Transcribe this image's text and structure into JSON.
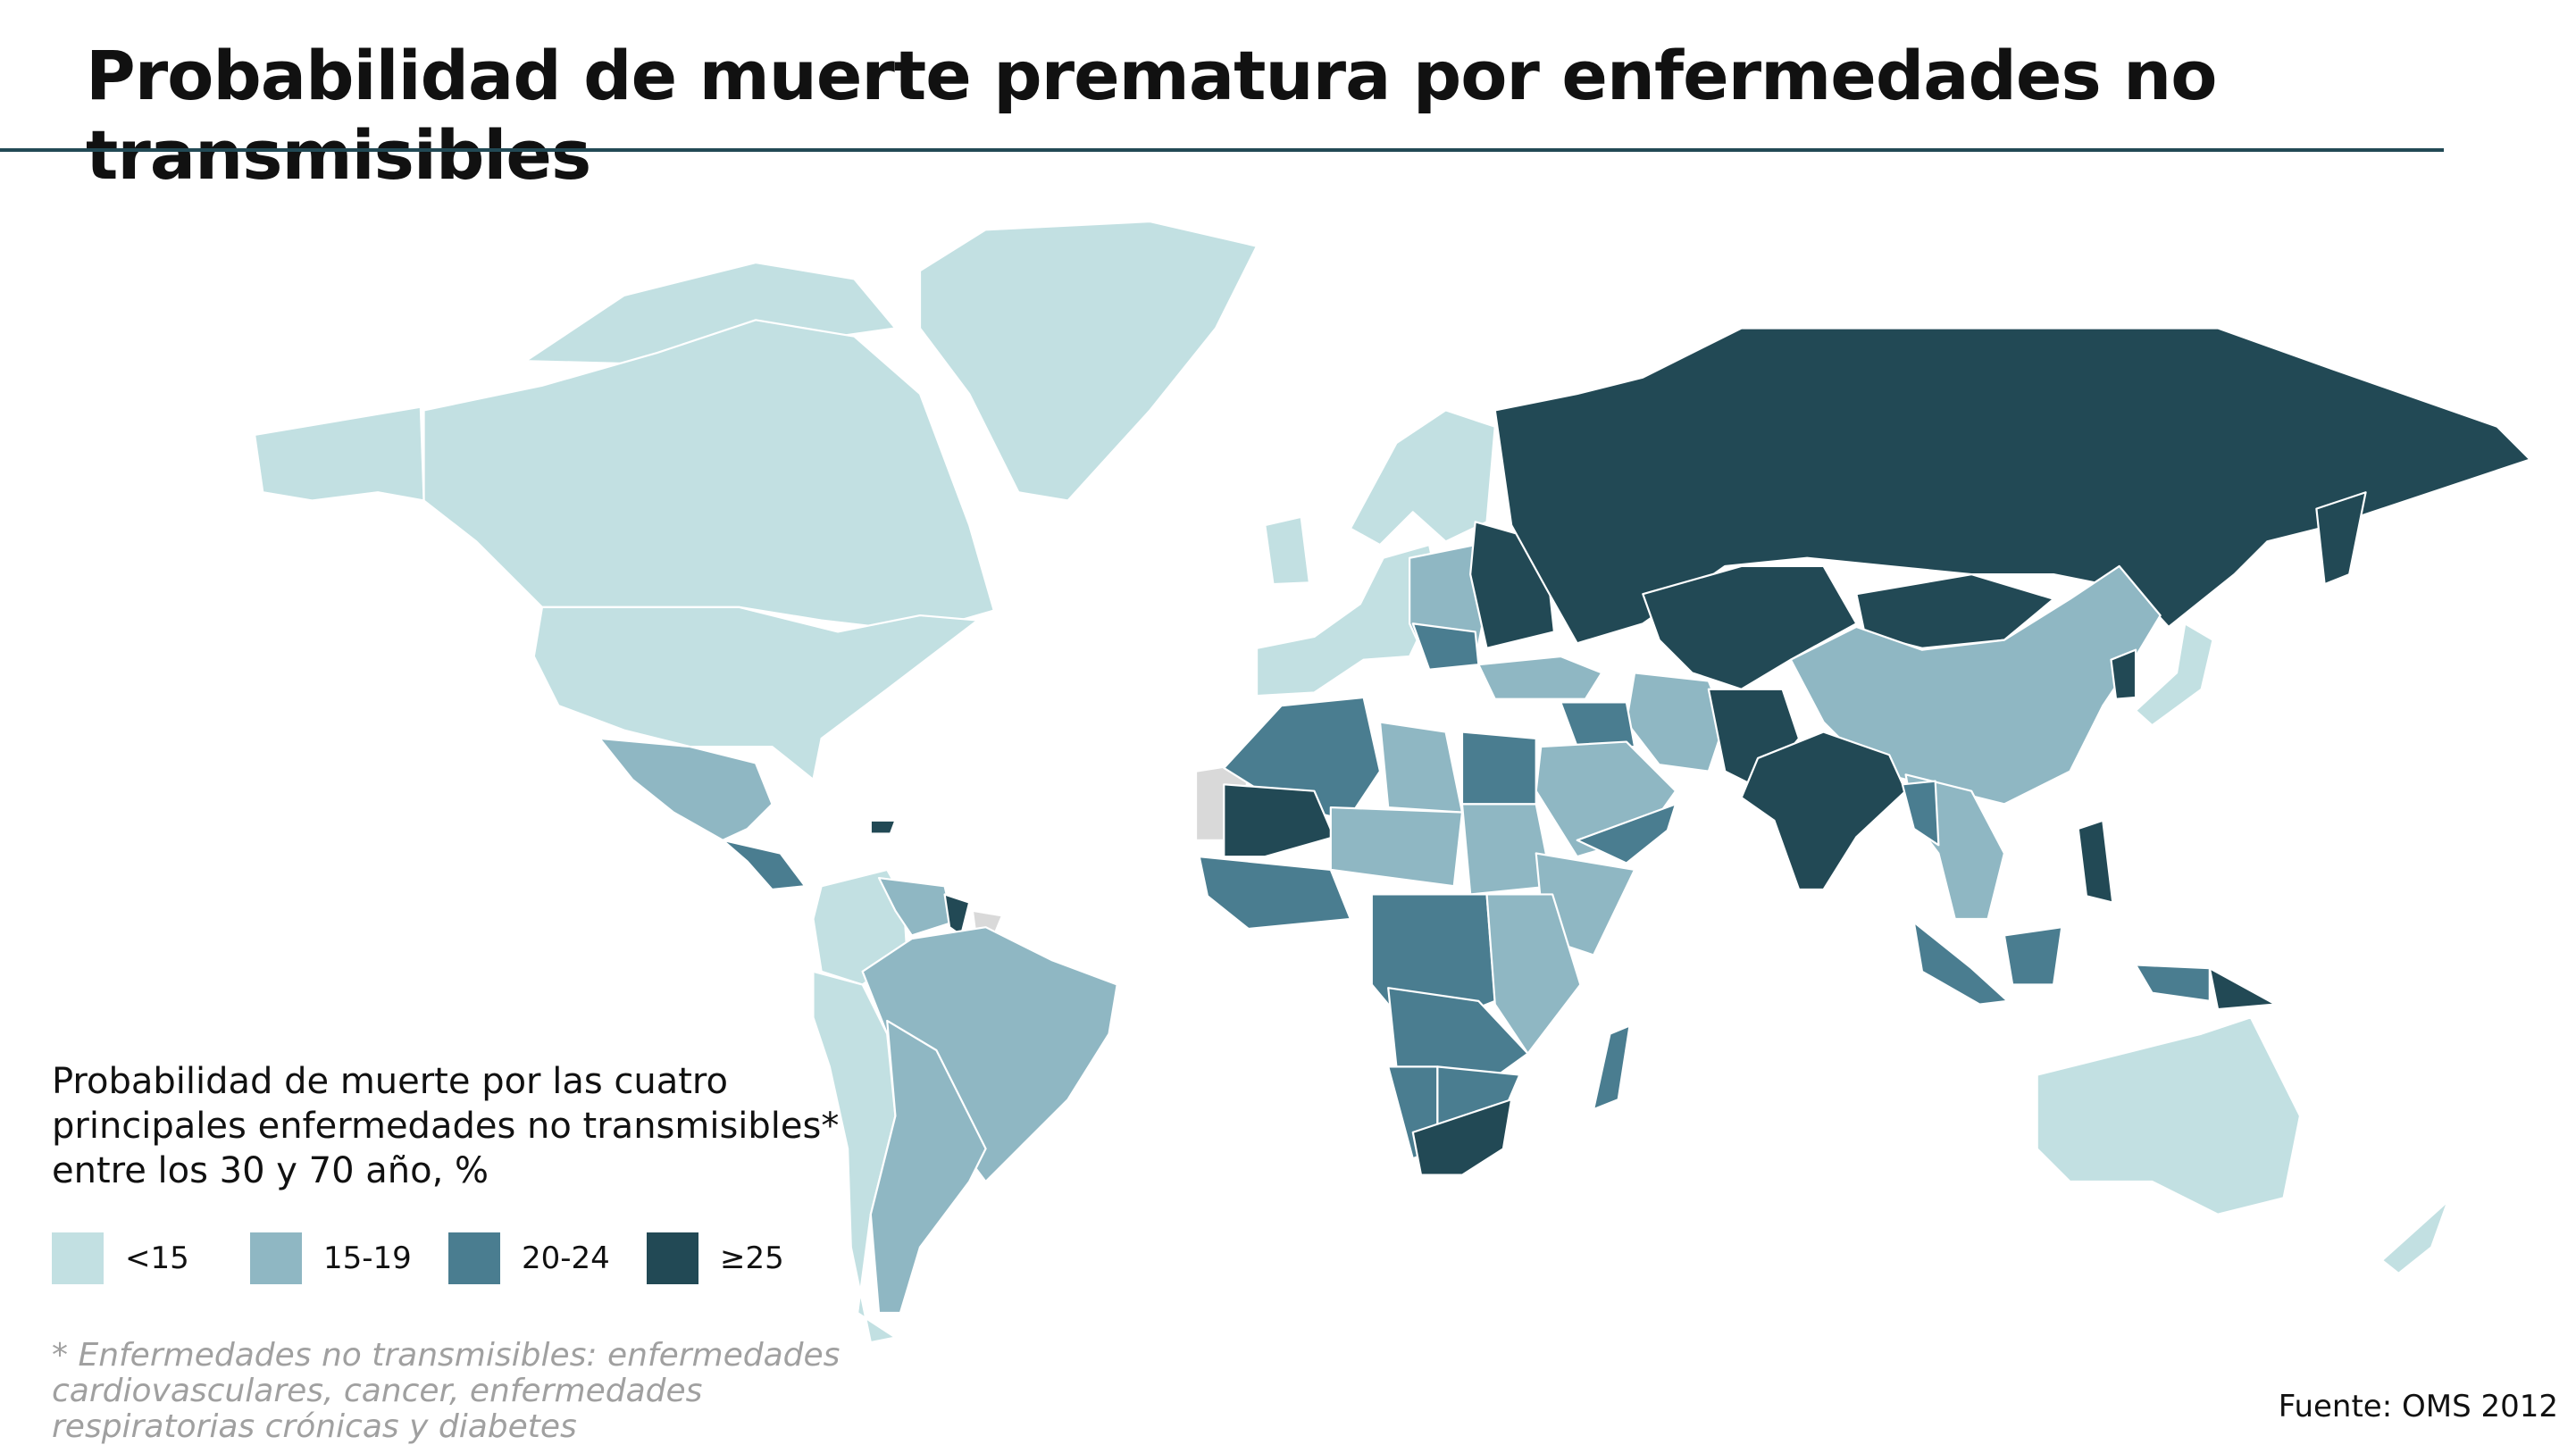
{
  "title": "Probabilidad de muerte prematura por enfermedades no transmisibles",
  "legend": {
    "title": "Probabilidad de muerte por las cuatro principales enfermedades no transmisibles* entre los 30 y 70 año, %",
    "items": [
      {
        "label": "<15",
        "color": "#c2e0e2"
      },
      {
        "label": "15-19",
        "color": "#8fb7c3"
      },
      {
        "label": "20-24",
        "color": "#4a7d90"
      },
      {
        "label": "≥25",
        "color": "#224955"
      }
    ],
    "no_data_color": "#d9d9d9"
  },
  "footnote": "* Enfermedades no transmisibles: enfermedades cardiovasculares, cancer, enfermedades respiratorias crónicas y diabetes",
  "source": "Fuente: OMS 2012"
}
